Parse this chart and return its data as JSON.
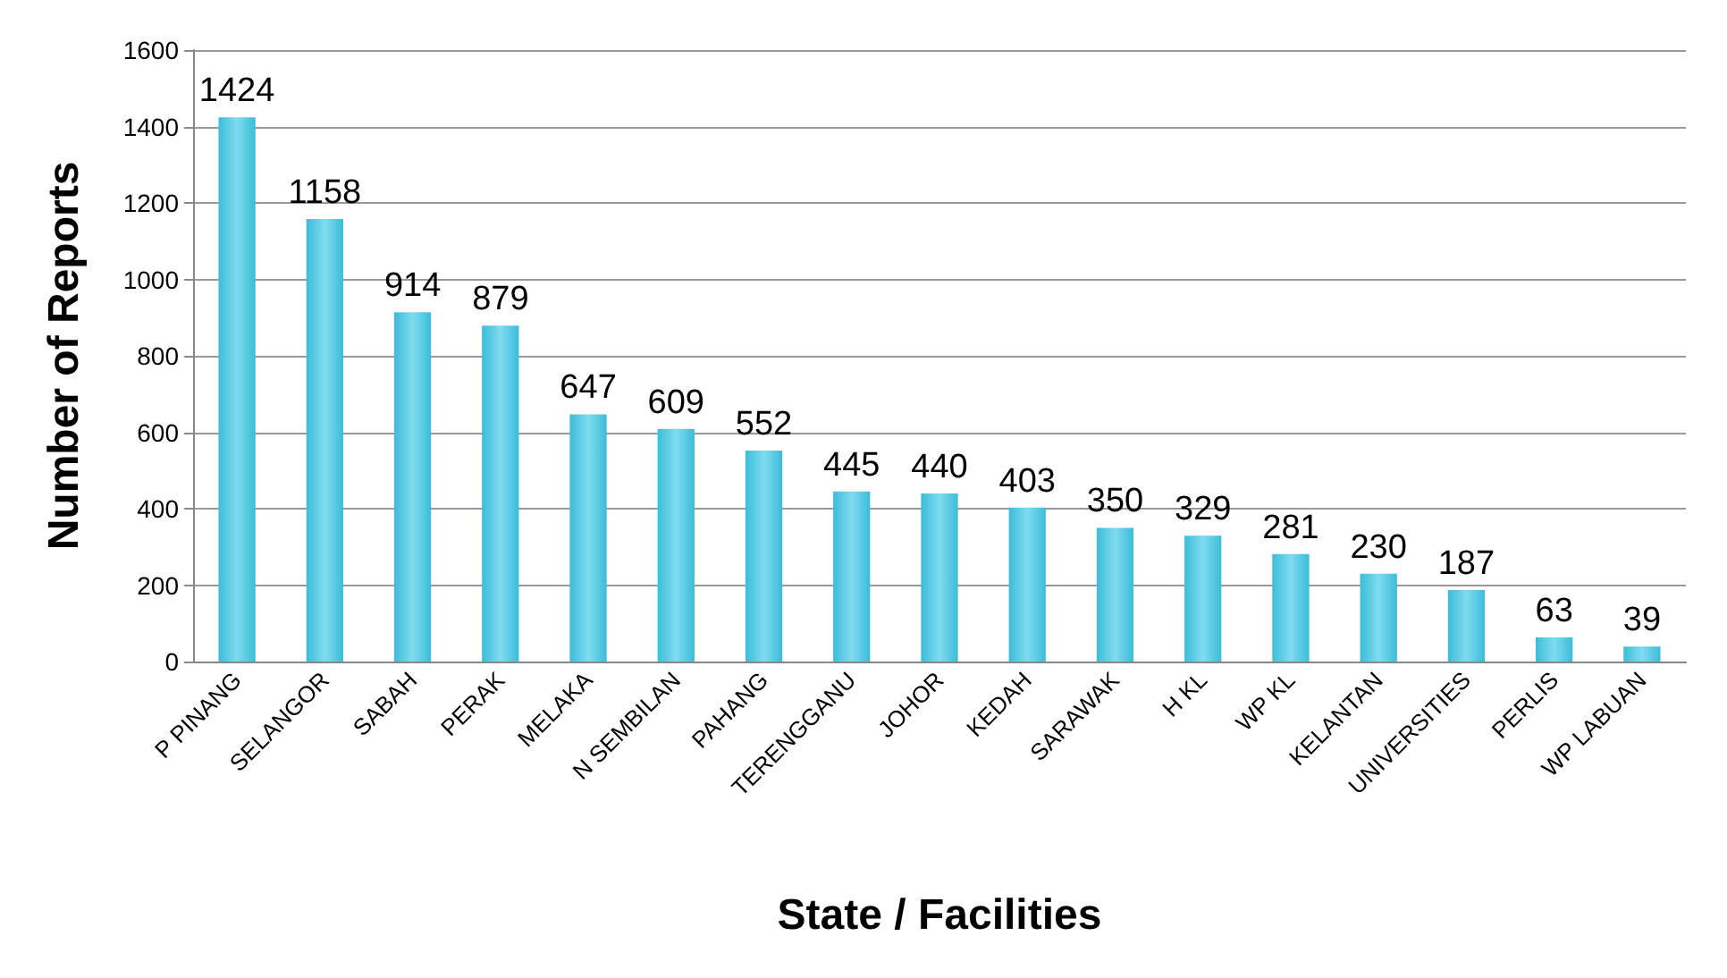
{
  "chart_data": {
    "type": "bar",
    "xlabel": "State / Facilities",
    "ylabel": "Number of Reports",
    "categories": [
      "P PINANG",
      "SELANGOR",
      "SABAH",
      "PERAK",
      "MELAKA",
      "N SEMBILAN",
      "PAHANG",
      "TERENGGANU",
      "JOHOR",
      "KEDAH",
      "SARAWAK",
      "H KL",
      "WP KL",
      "KELANTAN",
      "UNIVERSITIES",
      "PERLIS",
      "WP LABUAN"
    ],
    "values": [
      1424,
      1158,
      914,
      879,
      647,
      609,
      552,
      445,
      440,
      403,
      350,
      329,
      281,
      230,
      187,
      63,
      39
    ],
    "color": "#3bbcd9",
    "ylim": [
      0,
      1600
    ],
    "yticks": [
      0,
      200,
      400,
      600,
      800,
      1000,
      1200,
      1400,
      1600
    ],
    "grid": "y",
    "data_labels": true
  }
}
